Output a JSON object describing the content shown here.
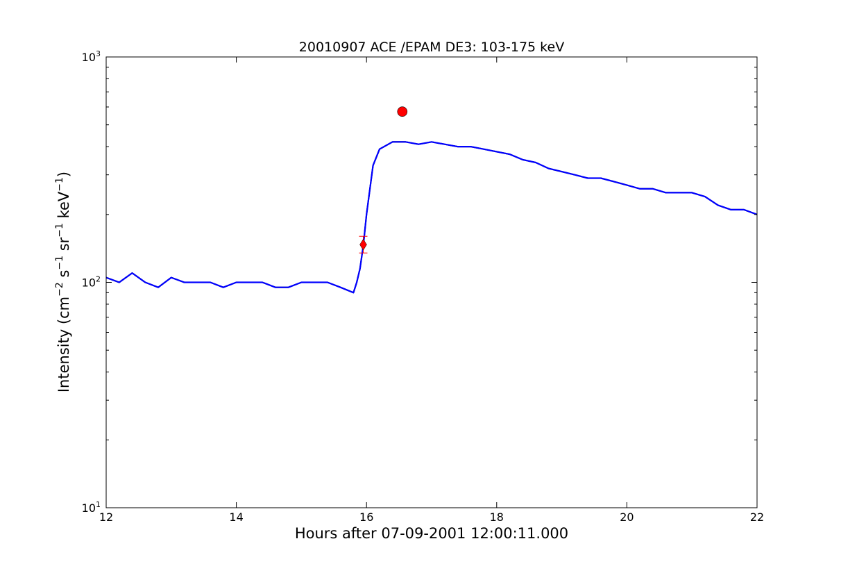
{
  "chart_data": {
    "type": "line",
    "title": "20010907 ACE /EPAM DE3: 103-175 keV",
    "xlabel": "Hours after 07-09-2001 12:00:11.000",
    "ylabel": {
      "prefix": "Intensity (cm",
      "sup1": "−2",
      "part2": " s",
      "sup2": "−1",
      "part3": " sr",
      "sup3": "−1",
      "part4": " keV",
      "sup4": "−1",
      "suffix": ")"
    },
    "xlim": [
      12,
      22
    ],
    "ylim": [
      10,
      1000
    ],
    "yscale": "log",
    "grid": false,
    "xticks": [
      12,
      14,
      16,
      18,
      20,
      22
    ],
    "xtick_labels": [
      "12",
      "14",
      "16",
      "18",
      "20",
      "22"
    ],
    "yticks": [
      10,
      100,
      1000
    ],
    "ytick_labels": [
      {
        "base": "10",
        "exp": "1"
      },
      {
        "base": "10",
        "exp": "2"
      },
      {
        "base": "10",
        "exp": "3"
      }
    ],
    "series": [
      {
        "color": "#000000",
        "x": [
          12.0,
          12.2,
          12.4,
          12.6,
          12.8,
          13.0,
          13.2,
          13.4,
          13.6,
          13.8,
          14.0,
          14.2,
          14.4,
          14.6,
          14.8,
          15.0,
          15.2,
          15.4,
          15.6,
          15.8,
          15.85,
          15.9,
          15.95,
          16.0,
          16.1,
          16.2,
          16.4,
          16.6,
          16.8,
          17.0,
          17.2,
          17.4,
          17.6,
          17.8,
          18.0,
          18.2,
          18.4,
          18.6,
          18.8,
          19.0,
          19.2,
          19.4,
          19.6,
          19.8,
          20.0,
          20.2,
          20.4,
          20.6,
          20.8,
          21.0,
          21.2,
          21.4,
          21.6,
          21.8,
          22.0
        ],
        "values": [
          105,
          100,
          110,
          100,
          95,
          105,
          100,
          100,
          100,
          95,
          100,
          100,
          100,
          95,
          95,
          100,
          100,
          100,
          95,
          90,
          100,
          115,
          145,
          200,
          330,
          390,
          420,
          420,
          410,
          420,
          410,
          400,
          400,
          390,
          380,
          370,
          350,
          340,
          320,
          310,
          300,
          290,
          290,
          280,
          270,
          260,
          260,
          250,
          250,
          250,
          240,
          220,
          210,
          210,
          200
        ]
      },
      {
        "color": "#0000ff",
        "x": [
          12.0,
          12.2,
          12.4,
          12.6,
          12.8,
          13.0,
          13.2,
          13.4,
          13.6,
          13.8,
          14.0,
          14.2,
          14.4,
          14.6,
          14.8,
          15.0,
          15.2,
          15.4,
          15.6,
          15.8,
          15.85,
          15.9,
          15.95,
          16.0,
          16.1,
          16.2,
          16.4,
          16.6,
          16.8,
          17.0,
          17.2,
          17.4,
          17.6,
          17.8,
          18.0,
          18.2,
          18.4,
          18.6,
          18.8,
          19.0,
          19.2,
          19.4,
          19.6,
          19.8,
          20.0,
          20.2,
          20.4,
          20.6,
          20.8,
          21.0,
          21.2,
          21.4,
          21.6,
          21.8,
          22.0
        ],
        "values": [
          105,
          100,
          110,
          100,
          95,
          105,
          100,
          100,
          100,
          95,
          100,
          100,
          100,
          95,
          95,
          100,
          100,
          100,
          95,
          90,
          100,
          115,
          145,
          200,
          330,
          390,
          420,
          420,
          410,
          420,
          410,
          400,
          400,
          390,
          380,
          370,
          350,
          340,
          320,
          310,
          300,
          290,
          290,
          280,
          270,
          260,
          260,
          250,
          250,
          250,
          240,
          220,
          210,
          210,
          200
        ]
      }
    ],
    "markers": [
      {
        "shape": "diamond",
        "x": 15.95,
        "y": 147,
        "color": "#ff0000"
      },
      {
        "shape": "circle",
        "x": 16.55,
        "y": 572,
        "color": "#ff0000"
      }
    ]
  }
}
